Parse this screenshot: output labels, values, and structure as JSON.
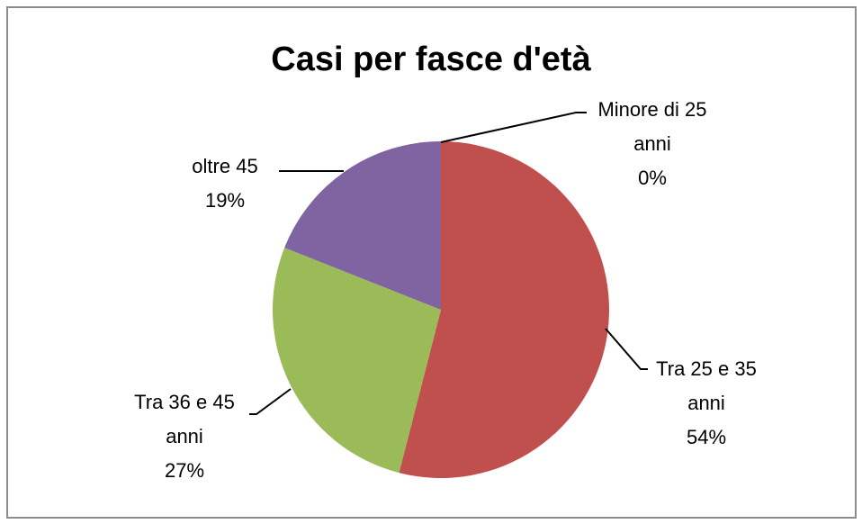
{
  "chart_data": {
    "type": "pie",
    "title": "Casi per fasce d'età",
    "categories": [
      "Minore di 25 anni",
      "Tra 25 e 35 anni",
      "Tra 36 e 45 anni",
      "oltre 45"
    ],
    "values": [
      0,
      54,
      27,
      19
    ],
    "value_labels": [
      "0%",
      "54%",
      "27%",
      "19%"
    ],
    "colors": [
      "#4f81bd",
      "#c0504d",
      "#9bbb59",
      "#8064a2"
    ]
  }
}
